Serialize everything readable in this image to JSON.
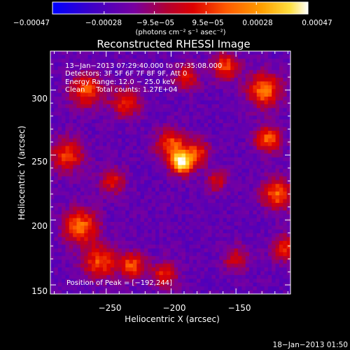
{
  "chart_data": {
    "type": "heatmap",
    "title": "Reconstructed RHESSI Image",
    "xlabel": "Heliocentric X (arcsec)",
    "ylabel": "Heliocentric Y (arcsec)",
    "xlim": [
      -293,
      -108
    ],
    "ylim": [
      143,
      330
    ],
    "x_ticks": [
      {
        "value": -250,
        "label": "−250"
      },
      {
        "value": -200,
        "label": "−200"
      },
      {
        "value": -150,
        "label": "−150"
      }
    ],
    "y_ticks": [
      {
        "value": 150,
        "label": "150"
      },
      {
        "value": 200,
        "label": "200"
      },
      {
        "value": 250,
        "label": "250"
      },
      {
        "value": 300,
        "label": "300"
      }
    ],
    "colorbar": {
      "range": [
        -0.00047,
        0.00047
      ],
      "tick_labels": [
        "−0.00047",
        "−0.00028",
        "−9.5e−05",
        "9.5e−05",
        "0.00028",
        "0.00047"
      ],
      "tick_values": [
        -0.00047,
        -0.00028,
        -9.5e-05,
        9.5e-05,
        0.00028,
        0.00047
      ],
      "unit_label": "(photons cm⁻² s⁻¹ asec⁻²)",
      "colors": [
        "#0000ff",
        "#3c00c8",
        "#7800a0",
        "#c80000",
        "#ff4000",
        "#ff9000",
        "#ffd800",
        "#ffffff"
      ]
    },
    "annotations": [
      "13−Jan−2013 07:29:40.000 to 07:35:08.000",
      "Detectors: 3F 5F 6F 7F 8F 9F, Att 0",
      "Energy Range: 12.0 − 25.0 keV",
      "Clean     Total counts: 1.27E+04"
    ],
    "peak_label": "Position of Peak = [−192,244]",
    "peak": [
      -192,
      244
    ],
    "footer_date": "18−Jan−2013 01:50",
    "sources": [
      {
        "x": -192,
        "y": 244,
        "sigma": 6,
        "amp": 1.0
      },
      {
        "x": -200,
        "y": 258,
        "sigma": 8,
        "amp": 0.55
      },
      {
        "x": -180,
        "y": 252,
        "sigma": 7,
        "amp": 0.45
      },
      {
        "x": -128,
        "y": 300,
        "sigma": 9,
        "amp": 0.65
      },
      {
        "x": -125,
        "y": 262,
        "sigma": 7,
        "amp": 0.6
      },
      {
        "x": -118,
        "y": 220,
        "sigma": 8,
        "amp": 0.6
      },
      {
        "x": -265,
        "y": 300,
        "sigma": 9,
        "amp": 0.55
      },
      {
        "x": -280,
        "y": 250,
        "sigma": 9,
        "amp": 0.5
      },
      {
        "x": -270,
        "y": 195,
        "sigma": 9,
        "amp": 0.65
      },
      {
        "x": -255,
        "y": 168,
        "sigma": 9,
        "amp": 0.55
      },
      {
        "x": -230,
        "y": 165,
        "sigma": 7,
        "amp": 0.55
      },
      {
        "x": -205,
        "y": 158,
        "sigma": 7,
        "amp": 0.45
      },
      {
        "x": -158,
        "y": 318,
        "sigma": 7,
        "amp": 0.55
      },
      {
        "x": -188,
        "y": 310,
        "sigma": 7,
        "amp": 0.4
      },
      {
        "x": -235,
        "y": 290,
        "sigma": 8,
        "amp": 0.45
      },
      {
        "x": -150,
        "y": 170,
        "sigma": 7,
        "amp": 0.35
      },
      {
        "x": -112,
        "y": 178,
        "sigma": 7,
        "amp": 0.45
      },
      {
        "x": -245,
        "y": 230,
        "sigma": 7,
        "amp": 0.4
      },
      {
        "x": -165,
        "y": 230,
        "sigma": 6,
        "amp": 0.35
      }
    ]
  }
}
